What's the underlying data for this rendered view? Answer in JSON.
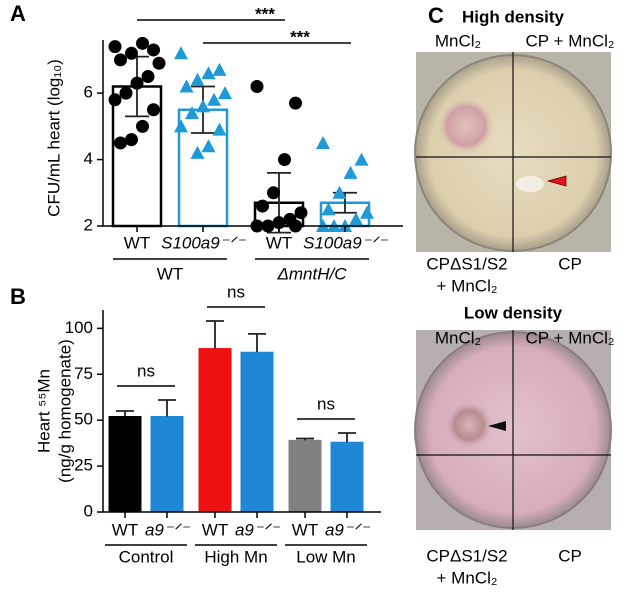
{
  "panel_labels": [
    "A",
    "B",
    "C"
  ],
  "chart_data": [
    {
      "type": "bar",
      "ylabel": "CFU/mL heart (log₁₀)",
      "ylim": [
        2,
        7.6
      ],
      "yticks": [
        2,
        4,
        6
      ],
      "hollow": true,
      "annotations": [
        "***",
        "***"
      ],
      "groups": [
        {
          "name": "WT",
          "bars": [
            {
              "label": "WT",
              "value": 6.2,
              "error": 0.9,
              "color": "#000000",
              "marker": "circle",
              "points": [
                7.4,
                7.3,
                7.5,
                7.2,
                7.0,
                6.9,
                6.5,
                6.3,
                6.0,
                5.8,
                5.5,
                5.0,
                4.6,
                4.5
              ]
            },
            {
              "label": "S100a9⁻ᐟ⁻",
              "value": 5.5,
              "error": 0.7,
              "color": "#1e9ad6",
              "marker": "triangle",
              "points": [
                7.2,
                6.7,
                6.6,
                6.4,
                6.2,
                6.0,
                5.8,
                5.6,
                5.4,
                5.0,
                4.9,
                4.4,
                4.2
              ]
            }
          ]
        },
        {
          "name": "ΔmntH/C",
          "bars": [
            {
              "label": "WT",
              "value": 2.7,
              "error": 0.9,
              "color": "#000000",
              "marker": "circle",
              "points": [
                6.2,
                5.7,
                4.0,
                3.0,
                2.6,
                2.4,
                2.2,
                2.1,
                2.0,
                2.0,
                2.0
              ]
            },
            {
              "label": "S100a9⁻ᐟ⁻",
              "value": 2.7,
              "error": 0.3,
              "color": "#1e9ad6",
              "marker": "triangle",
              "points": [
                4.5,
                4.0,
                3.6,
                3.0,
                2.5,
                2.4,
                2.2,
                2.0,
                2.0,
                2.0
              ]
            }
          ]
        }
      ]
    },
    {
      "type": "bar",
      "ylabel": [
        "Heart ⁵⁵Mn",
        "(ng/g homogenate)"
      ],
      "ylim": [
        0,
        110
      ],
      "yticks": [
        0,
        25,
        50,
        75,
        100
      ],
      "hollow": false,
      "annotations": [
        "ns",
        "ns",
        "ns"
      ],
      "groups": [
        {
          "name": "Control",
          "bars": [
            {
              "label": "WT",
              "value": 52,
              "error": 3,
              "color": "#000000"
            },
            {
              "label": "a9⁻ᐟ⁻",
              "value": 52,
              "error": 9,
              "color": "#1e88d6"
            }
          ]
        },
        {
          "name": "High Mn",
          "bars": [
            {
              "label": "WT",
              "value": 89,
              "error": 15,
              "color": "#ee1111"
            },
            {
              "label": "a9⁻ᐟ⁻",
              "value": 87,
              "error": 10,
              "color": "#1e88d6"
            }
          ]
        },
        {
          "name": "Low Mn",
          "bars": [
            {
              "label": "WT",
              "value": 39,
              "error": 1,
              "color": "#808080"
            },
            {
              "label": "a9⁻ᐟ⁻",
              "value": 38,
              "error": 5,
              "color": "#1e88d6"
            }
          ]
        }
      ]
    }
  ],
  "panel_c": {
    "high": {
      "title": "High density",
      "top_left": "MnCl₂",
      "top_right": "CP + MnCl₂",
      "bottom_left": [
        "CPΔS1/S2",
        "+ MnCl₂"
      ],
      "bottom_right": "CP"
    },
    "low": {
      "title": "Low density",
      "top_left": "MnCl₂",
      "top_right": "CP + MnCl₂",
      "bottom_left": [
        "CPΔS1/S2",
        "+ MnCl₂"
      ],
      "bottom_right": "CP"
    }
  }
}
